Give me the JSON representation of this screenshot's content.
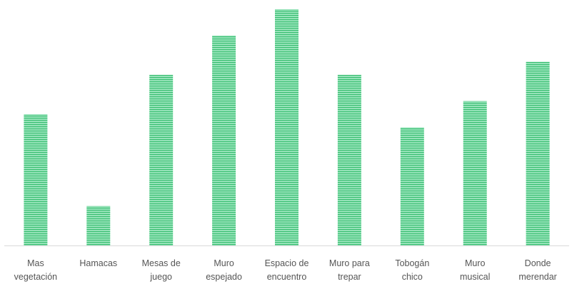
{
  "chart_data": {
    "type": "bar",
    "categories": [
      [
        "Mas",
        "vegetación"
      ],
      [
        "Hamacas"
      ],
      [
        "Mesas de",
        "juego"
      ],
      [
        "Muro",
        "espejado"
      ],
      [
        "Espacio de",
        "encuentro"
      ],
      [
        "Muro para",
        "trepar"
      ],
      [
        "Tobogán",
        "chico"
      ],
      [
        "Muro",
        "musical"
      ],
      [
        "Donde",
        "merendar"
      ]
    ],
    "values": [
      10,
      3,
      13,
      16,
      18,
      13,
      9,
      11,
      14
    ],
    "ylim": [
      0,
      18
    ],
    "grid": false,
    "legend": "none",
    "bar_fill": "#9fe7c0",
    "bar_stripe": "#38bd70",
    "axis_color": "#d9d9d9"
  }
}
